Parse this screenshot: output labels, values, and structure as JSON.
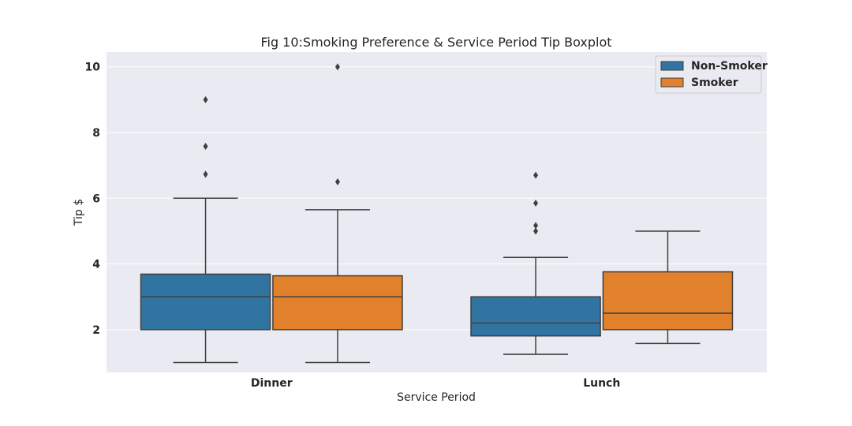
{
  "chart_data": {
    "type": "box",
    "title": "Fig 10:Smoking Preference & Service Period Tip Boxplot",
    "xlabel": "Service Period",
    "ylabel": "Tip $",
    "categories": [
      "Dinner",
      "Lunch"
    ],
    "ylim": [
      0.7,
      10.45
    ],
    "yticks": [
      2,
      4,
      6,
      8,
      10
    ],
    "grid": true,
    "legend_position": "top-right",
    "series": [
      {
        "name": "Non-Smoker",
        "color": "#3274a1",
        "boxes": [
          {
            "whisker_low": 1.0,
            "q1": 2.0,
            "median": 3.0,
            "q3": 3.69,
            "whisker_high": 6.0,
            "outliers": [
              6.73,
              7.58,
              9.0
            ]
          },
          {
            "whisker_low": 1.25,
            "q1": 1.81,
            "median": 2.2,
            "q3": 3.0,
            "whisker_high": 4.2,
            "outliers": [
              5.0,
              5.17,
              5.85,
              6.7
            ]
          }
        ]
      },
      {
        "name": "Smoker",
        "color": "#e1812c",
        "boxes": [
          {
            "whisker_low": 1.0,
            "q1": 2.0,
            "median": 3.0,
            "q3": 3.64,
            "whisker_high": 5.65,
            "outliers": [
              6.5,
              10.0
            ]
          },
          {
            "whisker_low": 1.58,
            "q1": 2.0,
            "median": 2.5,
            "q3": 3.76,
            "whisker_high": 5.0,
            "outliers": []
          }
        ]
      }
    ]
  }
}
